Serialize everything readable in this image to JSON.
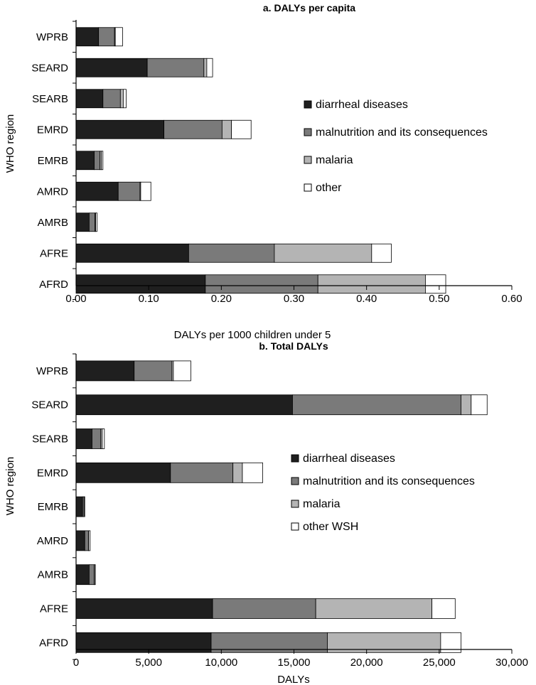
{
  "colors": {
    "diarrheal": "#1f1f1f",
    "malnutrition": "#7a7a7a",
    "malaria": "#b4b4b4",
    "other": "#ffffff",
    "stroke": "#000000"
  },
  "chart_data": [
    {
      "type": "bar",
      "orientation": "horizontal",
      "stacked": true,
      "title": "a. DALYs per capita",
      "xlabel": "DALYs per 1000 children under 5",
      "ylabel": "WHO region",
      "xlim": [
        0,
        0.6
      ],
      "xticks": [
        0,
        0.1,
        0.2,
        0.3,
        0.4,
        0.5,
        0.6
      ],
      "xtick_labels": [
        "0.00",
        "0.10",
        "0.20",
        "0.30",
        "0.40",
        "0.50",
        "0.60"
      ],
      "grid": false,
      "legend_position": "center-right",
      "categories": [
        "WPRB",
        "SEARD",
        "SEARB",
        "EMRD",
        "EMRB",
        "AMRD",
        "AMRB",
        "AFRE",
        "AFRD"
      ],
      "series": [
        {
          "name": "diarrheal diseases",
          "color_key": "diarrheal",
          "values": [
            0.031,
            0.098,
            0.037,
            0.121,
            0.025,
            0.058,
            0.018,
            0.155,
            0.178
          ]
        },
        {
          "name": "malnutrition and its consequences",
          "color_key": "malnutrition",
          "values": [
            0.022,
            0.078,
            0.024,
            0.08,
            0.008,
            0.03,
            0.008,
            0.118,
            0.155
          ]
        },
        {
          "name": "malaria",
          "color_key": "malaria",
          "values": [
            0.001,
            0.004,
            0.004,
            0.013,
            0.002,
            0.001,
            0.001,
            0.134,
            0.148
          ]
        },
        {
          "name": "other",
          "color_key": "other",
          "values": [
            0.01,
            0.008,
            0.004,
            0.027,
            0.002,
            0.014,
            0.002,
            0.027,
            0.028
          ]
        }
      ]
    },
    {
      "type": "bar",
      "orientation": "horizontal",
      "stacked": true,
      "title": "b. Total DALYs",
      "xlabel": "DALYs",
      "ylabel": "WHO region",
      "xlim": [
        0,
        30000
      ],
      "xticks": [
        0,
        5000,
        10000,
        15000,
        20000,
        25000,
        30000
      ],
      "xtick_labels": [
        "0",
        "5,000",
        "10,000",
        "15,000",
        "20,000",
        "25,000",
        "30,000"
      ],
      "grid": false,
      "legend_position": "center-right",
      "categories": [
        "WPRB",
        "SEARD",
        "SEARB",
        "EMRD",
        "EMRB",
        "AMRD",
        "AMRB",
        "AFRE",
        "AFRD"
      ],
      "series": [
        {
          "name": "diarrheal diseases",
          "color_key": "diarrheal",
          "values": [
            4000,
            14900,
            1100,
            6500,
            450,
            600,
            900,
            9400,
            9300
          ]
        },
        {
          "name": "malnutrition and its consequences",
          "color_key": "malnutrition",
          "values": [
            2600,
            11600,
            600,
            4300,
            100,
            250,
            350,
            7100,
            8000
          ]
        },
        {
          "name": "malaria",
          "color_key": "malaria",
          "values": [
            100,
            700,
            100,
            650,
            10,
            20,
            20,
            8000,
            7800
          ]
        },
        {
          "name": "other WSH",
          "color_key": "other",
          "values": [
            1200,
            1100,
            150,
            1400,
            40,
            100,
            60,
            1600,
            1400
          ]
        }
      ]
    }
  ]
}
